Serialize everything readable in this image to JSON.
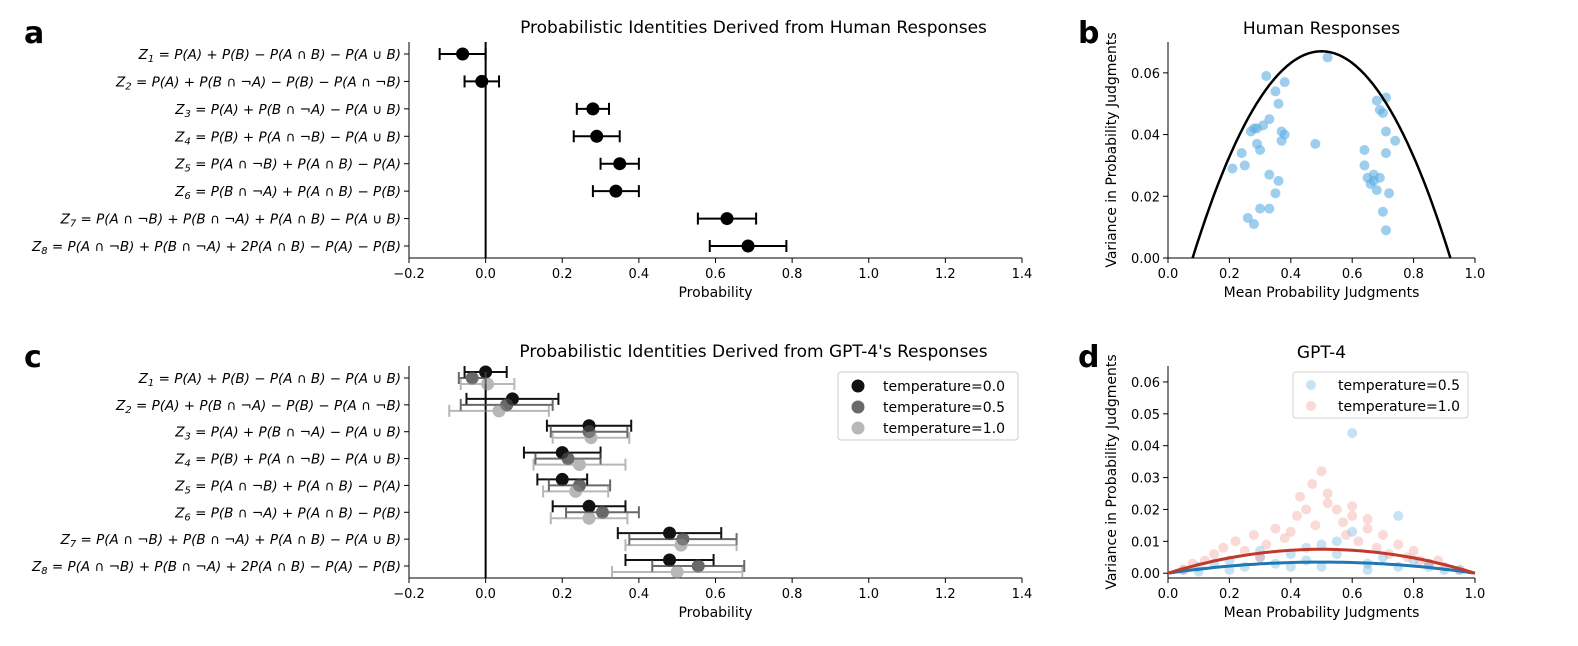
{
  "figure": {
    "panel_letters": [
      "a",
      "b",
      "c",
      "d"
    ]
  },
  "chart_data": [
    {
      "id": "a",
      "type": "errorbar",
      "title": "Probabilistic Identities Derived from Human Responses",
      "xlabel": "Probability",
      "xlim": [
        -0.2,
        1.4
      ],
      "xticks": [
        -0.2,
        0.0,
        0.2,
        0.4,
        0.6,
        0.8,
        1.0,
        1.2,
        1.4
      ],
      "xtick_labels": [
        "−0.2",
        "0.0",
        "0.2",
        "0.4",
        "0.6",
        "0.8",
        "1.0",
        "1.2",
        "1.4"
      ],
      "categories": [
        "Z1 = P(A) + P(B) − P(A ∩ B) − P(A ∪ B)",
        "Z2 = P(A) + P(B ∩ ¬A) − P(B) − P(A ∩ ¬B)",
        "Z3 = P(A) + P(B ∩ ¬A) − P(A ∪ B)",
        "Z4 = P(B) + P(A ∩ ¬B) − P(A ∪ B)",
        "Z5 = P(A ∩ ¬B) + P(A ∩ B) − P(A)",
        "Z6 = P(B ∩ ¬A) + P(A ∩ B) − P(B)",
        "Z7 = P(A ∩ ¬B) + P(B ∩ ¬A) + P(A ∩ B) − P(A ∪ B)",
        "Z8 = P(A ∩ ¬B) + P(B ∩ ¬A) + 2P(A ∩ B) − P(A) − P(B)"
      ],
      "values": [
        -0.06,
        -0.01,
        0.28,
        0.29,
        0.35,
        0.34,
        0.63,
        0.685
      ],
      "errors": [
        0.06,
        0.045,
        0.042,
        0.06,
        0.05,
        0.06,
        0.076,
        0.1
      ],
      "color": "#000000"
    },
    {
      "id": "b",
      "type": "scatter",
      "title": "Human Responses",
      "xlabel": "Mean Probability Judgments",
      "ylabel": "Variance in Probability Judgments",
      "xlim": [
        0.0,
        1.0
      ],
      "ylim": [
        0.0,
        0.07
      ],
      "xticks": [
        0.0,
        0.2,
        0.4,
        0.6,
        0.8,
        1.0
      ],
      "xtick_labels": [
        "0.0",
        "0.2",
        "0.4",
        "0.6",
        "0.8",
        "1.0"
      ],
      "yticks": [
        0.0,
        0.02,
        0.04,
        0.06
      ],
      "ytick_labels": [
        "0.00",
        "0.02",
        "0.04",
        "0.06"
      ],
      "point_color": "#5DADE2",
      "curve": {
        "type": "parabola",
        "peak_x": 0.5,
        "peak_y": 0.067,
        "root_left": 0.08,
        "root_right": 0.92,
        "color": "#000000"
      },
      "x": [
        0.21,
        0.24,
        0.25,
        0.26,
        0.27,
        0.28,
        0.28,
        0.29,
        0.3,
        0.3,
        0.31,
        0.32,
        0.33,
        0.35,
        0.36,
        0.36,
        0.37,
        0.37,
        0.38,
        0.38,
        0.35,
        0.48,
        0.33,
        0.52,
        0.29,
        0.33,
        0.64,
        0.64,
        0.65,
        0.66,
        0.67,
        0.67,
        0.68,
        0.69,
        0.69,
        0.7,
        0.71,
        0.71,
        0.71,
        0.72,
        0.74,
        0.71,
        0.7,
        0.68
      ],
      "y": [
        0.029,
        0.034,
        0.03,
        0.013,
        0.041,
        0.042,
        0.011,
        0.037,
        0.035,
        0.016,
        0.043,
        0.059,
        0.016,
        0.021,
        0.025,
        0.05,
        0.038,
        0.041,
        0.04,
        0.057,
        0.054,
        0.037,
        0.027,
        0.065,
        0.042,
        0.045,
        0.03,
        0.035,
        0.026,
        0.024,
        0.027,
        0.025,
        0.051,
        0.048,
        0.026,
        0.047,
        0.052,
        0.041,
        0.034,
        0.021,
        0.038,
        0.009,
        0.015,
        0.022
      ]
    },
    {
      "id": "c",
      "type": "errorbar",
      "title": "Probabilistic Identities Derived from GPT-4's Responses",
      "xlabel": "Probability",
      "xlim": [
        -0.2,
        1.4
      ],
      "xticks": [
        -0.2,
        0.0,
        0.2,
        0.4,
        0.6,
        0.8,
        1.0,
        1.2,
        1.4
      ],
      "xtick_labels": [
        "−0.2",
        "0.0",
        "0.2",
        "0.4",
        "0.6",
        "0.8",
        "1.0",
        "1.2",
        "1.4"
      ],
      "categories": [
        "Z1 = P(A) + P(B) − P(A ∩ B) − P(A ∪ B)",
        "Z2 = P(A) + P(B ∩ ¬A) − P(B) − P(A ∩ ¬B)",
        "Z3 = P(A) + P(B ∩ ¬A) − P(A ∪ B)",
        "Z4 = P(B) + P(A ∩ ¬B) − P(A ∪ B)",
        "Z5 = P(A ∩ ¬B) + P(A ∩ B) − P(A)",
        "Z6 = P(B ∩ ¬A) + P(A ∩ B) − P(B)",
        "Z7 = P(A ∩ ¬B) + P(B ∩ ¬A) + P(A ∩ B) − P(A ∪ B)",
        "Z8 = P(A ∩ ¬B) + P(B ∩ ¬A) + 2P(A ∩ B) − P(A) − P(B)"
      ],
      "legend_position": "upper-right",
      "series": [
        {
          "name": "temperature=0.0",
          "color": "#111111",
          "opacity": 1.0,
          "values": [
            0.0,
            0.07,
            0.27,
            0.2,
            0.2,
            0.27,
            0.48,
            0.48
          ],
          "errors": [
            0.055,
            0.12,
            0.11,
            0.1,
            0.065,
            0.095,
            0.135,
            0.115
          ]
        },
        {
          "name": "temperature=0.5",
          "color": "#444444",
          "opacity": 0.8,
          "values": [
            -0.035,
            0.055,
            0.27,
            0.215,
            0.245,
            0.305,
            0.515,
            0.555
          ],
          "errors": [
            0.035,
            0.12,
            0.1,
            0.085,
            0.08,
            0.095,
            0.14,
            0.12
          ]
        },
        {
          "name": "temperature=1.0",
          "color": "#888888",
          "opacity": 0.6,
          "values": [
            0.005,
            0.035,
            0.275,
            0.245,
            0.235,
            0.27,
            0.51,
            0.5
          ],
          "errors": [
            0.07,
            0.13,
            0.1,
            0.12,
            0.085,
            0.1,
            0.145,
            0.17
          ]
        }
      ]
    },
    {
      "id": "d",
      "type": "scatter",
      "title": "GPT-4",
      "xlabel": "Mean Probability Judgments",
      "ylabel": "Variance in Probability Judgments",
      "xlim": [
        0.0,
        1.0
      ],
      "ylim": [
        -0.0015,
        0.065
      ],
      "xticks": [
        0.0,
        0.2,
        0.4,
        0.6,
        0.8,
        1.0
      ],
      "xtick_labels": [
        "0.0",
        "0.2",
        "0.4",
        "0.6",
        "0.8",
        "1.0"
      ],
      "yticks": [
        0.0,
        0.01,
        0.02,
        0.03,
        0.04,
        0.05,
        0.06
      ],
      "ytick_labels": [
        "0.00",
        "0.01",
        "0.02",
        "0.03",
        "0.04",
        "0.05",
        "0.06"
      ],
      "legend_position": "upper-right",
      "series": [
        {
          "name": "temperature=0.5",
          "color": "#5DADE2",
          "curve_color": "#1F77B4",
          "curve_peak": 0.0035,
          "x": [
            0.05,
            0.1,
            0.15,
            0.2,
            0.25,
            0.3,
            0.35,
            0.4,
            0.45,
            0.5,
            0.55,
            0.6,
            0.65,
            0.7,
            0.75,
            0.8,
            0.85,
            0.9,
            0.95,
            0.6,
            0.45,
            0.55,
            0.4,
            0.75,
            0.3,
            0.2,
            0.65,
            0.5,
            0.85,
            0.1
          ],
          "y": [
            0.001,
            0.002,
            0.003,
            0.004,
            0.002,
            0.005,
            0.003,
            0.006,
            0.004,
            0.002,
            0.006,
            0.044,
            0.003,
            0.005,
            0.002,
            0.004,
            0.003,
            0.001,
            0.001,
            0.013,
            0.008,
            0.01,
            0.002,
            0.018,
            0.007,
            0.001,
            0.001,
            0.009,
            0.002,
            0.0005
          ]
        },
        {
          "name": "temperature=1.0",
          "color": "#F1948A",
          "curve_color": "#C0392B",
          "curve_peak": 0.0075,
          "x": [
            0.05,
            0.08,
            0.12,
            0.15,
            0.18,
            0.22,
            0.25,
            0.28,
            0.32,
            0.35,
            0.38,
            0.42,
            0.45,
            0.48,
            0.5,
            0.52,
            0.55,
            0.58,
            0.6,
            0.62,
            0.65,
            0.68,
            0.7,
            0.72,
            0.75,
            0.78,
            0.8,
            0.82,
            0.85,
            0.88,
            0.9,
            0.95,
            0.47,
            0.52,
            0.43,
            0.57,
            0.4,
            0.6,
            0.3,
            0.65
          ],
          "y": [
            0.001,
            0.003,
            0.004,
            0.006,
            0.008,
            0.01,
            0.007,
            0.012,
            0.009,
            0.014,
            0.011,
            0.018,
            0.02,
            0.015,
            0.032,
            0.025,
            0.02,
            0.012,
            0.018,
            0.01,
            0.014,
            0.008,
            0.012,
            0.006,
            0.009,
            0.005,
            0.007,
            0.004,
            0.003,
            0.004,
            0.002,
            0.001,
            0.028,
            0.022,
            0.024,
            0.016,
            0.013,
            0.021,
            0.005,
            0.017
          ]
        }
      ]
    }
  ]
}
